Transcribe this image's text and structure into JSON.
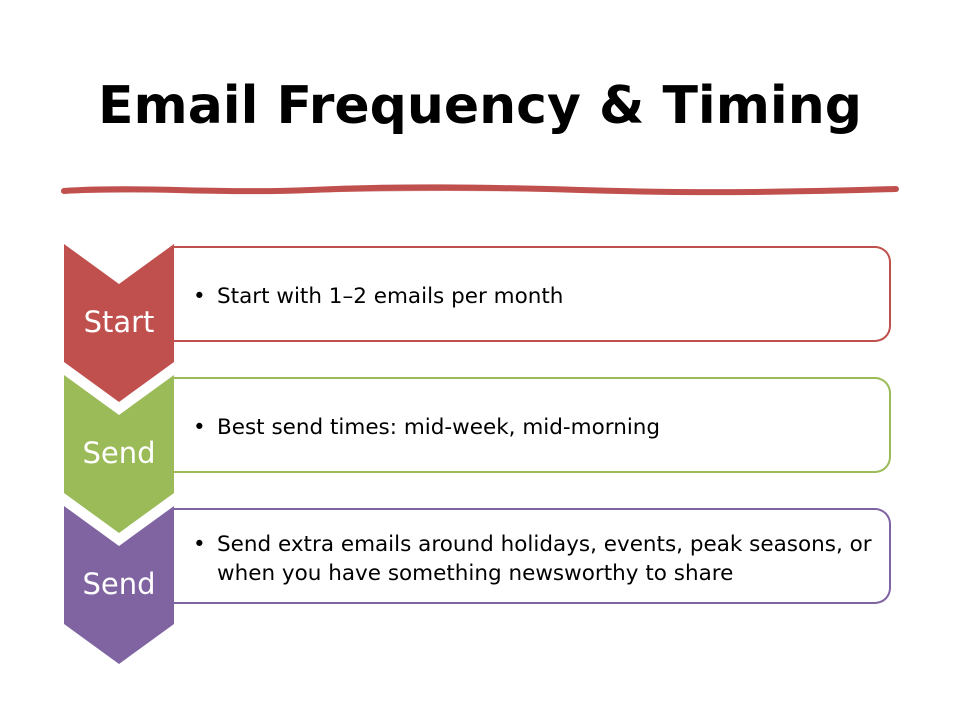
{
  "slide": {
    "title": "Email Frequency & Timing"
  },
  "steps": [
    {
      "label": "Start",
      "bullet": "•",
      "text": "Start with 1–2 emails per month",
      "color": "#c0504d"
    },
    {
      "label": "Send",
      "bullet": "•",
      "text": "Best send times: mid-week, mid-morning",
      "color": "#9bbb59"
    },
    {
      "label": "Send",
      "bullet": "•",
      "text": "Send extra emails around holidays, events, peak seasons, or when you have something newsworthy to share",
      "color": "#8064a2"
    }
  ],
  "colors": {
    "divider": "#c0504d"
  }
}
